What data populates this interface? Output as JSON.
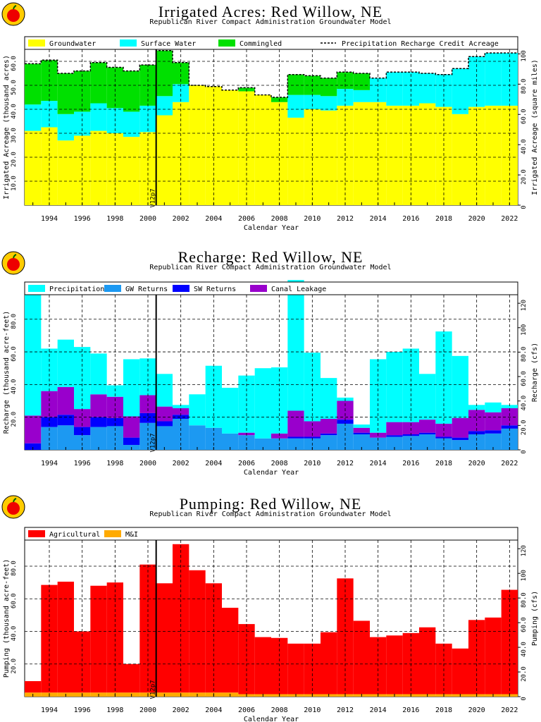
{
  "version_label": "V12p7",
  "x_label": "Calendar Year",
  "years": [
    1993,
    1994,
    1995,
    1996,
    1997,
    1998,
    1999,
    2000,
    2001,
    2002,
    2003,
    2004,
    2005,
    2006,
    2007,
    2008,
    2009,
    2010,
    2011,
    2012,
    2013,
    2014,
    2015,
    2016,
    2017,
    2018,
    2019,
    2020,
    2021,
    2022
  ],
  "x_tick_labels": [
    "1994",
    "1996",
    "1998",
    "2000",
    "2002",
    "2004",
    "2006",
    "2008",
    "2010",
    "2012",
    "2014",
    "2016",
    "2018",
    "2020",
    "2022"
  ],
  "colors": {
    "groundwater": "#ffff00",
    "surface": "#00ffff",
    "commingled": "#00e000",
    "precip": "#00ffff",
    "gw_returns": "#1c99f2",
    "sw_returns": "#0000ff",
    "canal": "#9900cc",
    "agricultural": "#ff0000",
    "mi": "#ffaa00"
  },
  "chart_data": [
    {
      "type": "bar",
      "stacked": true,
      "title": "Irrigated Acres: Red Willow, NE",
      "subtitle": "Republican River Compact Administration Groundwater Model",
      "xlabel": "Calendar Year",
      "ylabel": "Irrigated Acreage (thousand acres)",
      "y2label": "Irrigated Acreage (square miles)",
      "ylim": [
        0,
        65
      ],
      "y_ticks": [
        "10.0",
        "20.0",
        "30.0",
        "40.0",
        "50.0",
        "60.0"
      ],
      "y2_ticks": [
        "0",
        "20.0",
        "40.0",
        "60.0",
        "80.0",
        "100"
      ],
      "legend": "top",
      "series": [
        {
          "name": "Groundwater",
          "values": [
            31,
            32.5,
            27,
            29,
            31,
            30,
            28.5,
            30.5,
            37.5,
            43,
            50,
            49.5,
            48,
            47.5,
            46,
            43,
            36.5,
            40,
            39.5,
            41.5,
            43,
            43,
            41.5,
            41.5,
            42.5,
            41,
            38,
            41,
            41.5,
            41.5
          ]
        },
        {
          "name": "Surface Water",
          "values": [
            11,
            11,
            11,
            10,
            11.5,
            10.5,
            10.5,
            11,
            8,
            7.5,
            0,
            0,
            0,
            0,
            0,
            0,
            9.5,
            6,
            6,
            7,
            5,
            10,
            14,
            14,
            12.5,
            13.5,
            19,
            21,
            22,
            22
          ]
        },
        {
          "name": "Commingled",
          "values": [
            17,
            17,
            17,
            17,
            17,
            17,
            17,
            17,
            19,
            9,
            0,
            0,
            0,
            1.5,
            0,
            2,
            8.5,
            8,
            7.5,
            7,
            7,
            0,
            0,
            0,
            0,
            0,
            0,
            0,
            0,
            0
          ]
        },
        {
          "name": "Precipitation Recharge Credit Acreage",
          "style": "dashed-line",
          "values": [
            59,
            60.5,
            55,
            56,
            59.5,
            57.5,
            56,
            58.5,
            64.5,
            59.5,
            50,
            49.5,
            48,
            49,
            46,
            45,
            54.5,
            54,
            53,
            55.5,
            55,
            53,
            55.5,
            55.5,
            55,
            54.5,
            57,
            62,
            63.5,
            63.5
          ]
        }
      ]
    },
    {
      "type": "bar",
      "stacked": true,
      "title": "Recharge: Red Willow, NE",
      "subtitle": "Republican River Compact Administration Groundwater Model",
      "xlabel": "Calendar Year",
      "ylabel": "Recharge (thousand acre-feet)",
      "y2label": "Recharge (cfs)",
      "ylim": [
        0,
        95
      ],
      "y_ticks": [
        "20.0",
        "40.0",
        "60.0",
        "80.0"
      ],
      "y2_ticks": [
        "0",
        "20.0",
        "40.0",
        "60.0",
        "80.0",
        "100",
        "120"
      ],
      "legend": "top",
      "series": [
        {
          "name": "Precipitation",
          "values": [
            74.5,
            26,
            29,
            38,
            25,
            7,
            35,
            22.5,
            20,
            2,
            19,
            38,
            28,
            35,
            43,
            40.5,
            80,
            42,
            25,
            2,
            2,
            45,
            43,
            45,
            28,
            56.5,
            38,
            3,
            6,
            2
          ]
        },
        {
          "name": "GW Returns",
          "values": [
            0,
            14,
            15,
            9,
            14,
            14.5,
            3,
            16.5,
            14.5,
            19,
            15,
            13.5,
            10,
            9,
            7,
            7,
            7,
            7,
            9,
            16,
            9.5,
            7.5,
            8,
            8.5,
            9.5,
            7,
            6,
            9.5,
            10,
            13
          ]
        },
        {
          "name": "SW Returns",
          "values": [
            4,
            6,
            6.5,
            5,
            6,
            5,
            4.5,
            6,
            3,
            2.5,
            0,
            0,
            0,
            0,
            0,
            0,
            1,
            1,
            1,
            2.5,
            1,
            0,
            1,
            1,
            1,
            1,
            1.5,
            2,
            2,
            2
          ]
        },
        {
          "name": "Canal Leakage",
          "values": [
            17,
            16,
            17,
            11,
            14,
            13,
            13,
            11,
            9,
            4,
            0,
            0,
            0,
            1.5,
            0,
            3,
            16,
            9.5,
            9,
            11.5,
            3,
            3,
            8,
            7.5,
            8,
            8,
            12,
            13,
            11,
            10.5
          ]
        }
      ]
    },
    {
      "type": "bar",
      "stacked": true,
      "title": "Pumping: Red Willow, NE",
      "subtitle": "Republican River Compact Administration Groundwater Model",
      "xlabel": "Calendar Year",
      "ylabel": "Pumping (thousand acre-feet)",
      "y2label": "Pumping (cfs)",
      "ylim": [
        0,
        96
      ],
      "y_ticks": [
        "20.0",
        "40.0",
        "60.0",
        "80.0"
      ],
      "y2_ticks": [
        "0",
        "20.0",
        "40.0",
        "60.0",
        "80.0",
        "100",
        "120"
      ],
      "legend": "top",
      "series": [
        {
          "name": "Agricultural",
          "values": [
            7,
            66,
            68,
            37.5,
            65.5,
            67.5,
            17.5,
            78.5,
            67,
            91,
            75,
            67,
            52,
            43,
            35,
            34.5,
            31,
            31,
            38,
            71,
            45,
            35,
            36,
            37.5,
            41,
            31,
            28,
            45.5,
            47,
            64
          ]
        },
        {
          "name": "M&I",
          "values": [
            2.5,
            2.5,
            2.5,
            2.5,
            2.5,
            2.5,
            2.5,
            2.5,
            2.5,
            2.5,
            2.5,
            2.5,
            2.5,
            1.5,
            1.5,
            1.5,
            1.5,
            1.5,
            1.5,
            1.5,
            1.5,
            1.5,
            1.5,
            1.5,
            1.5,
            1.5,
            1.5,
            1.5,
            1.5,
            1.5
          ]
        }
      ]
    }
  ]
}
